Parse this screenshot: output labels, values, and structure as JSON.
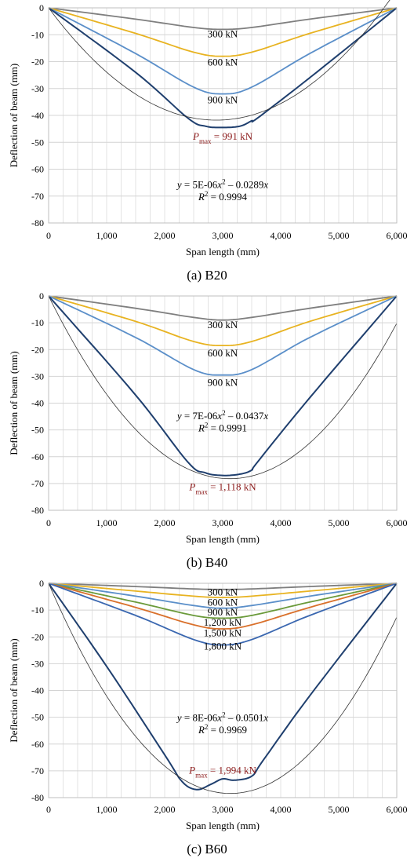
{
  "chart_data": [
    {
      "type": "line",
      "caption": "(a) B20",
      "xlabel": "Span length (mm)",
      "ylabel": "Deflection of beam (mm)",
      "xlim": [
        0,
        6000
      ],
      "ylim": [
        -80,
        0
      ],
      "xticks": [
        "0",
        "1,000",
        "2,000",
        "3,000",
        "4,000",
        "5,000",
        "6,000"
      ],
      "yticks": [
        "0",
        "-10",
        "-20",
        "-30",
        "-40",
        "-50",
        "-60",
        "-70",
        "-80"
      ],
      "grid": true,
      "series": [
        {
          "name": "300 kN",
          "color": "#7f7f7f",
          "x": [
            0,
            1500,
            2500,
            3000,
            3500,
            4500,
            6000
          ],
          "y": [
            0,
            -4.2,
            -7.3,
            -8,
            -7.3,
            -4.2,
            0
          ]
        },
        {
          "name": "600 kN",
          "color": "#e8b321",
          "x": [
            0,
            1500,
            2500,
            3000,
            3500,
            4500,
            6000
          ],
          "y": [
            0,
            -9.5,
            -16.5,
            -18,
            -16.5,
            -9.5,
            0
          ]
        },
        {
          "name": "900 kN",
          "color": "#5b8fc9",
          "x": [
            0,
            1500,
            2500,
            3000,
            3500,
            4500,
            6000
          ],
          "y": [
            0,
            -17,
            -29.5,
            -32,
            -29.5,
            -17,
            0
          ]
        },
        {
          "name": "",
          "color": "#1f3f6e",
          "x": [
            0,
            1500,
            2400,
            2700,
            3000,
            3300,
            3500,
            3600,
            4500,
            6000
          ],
          "y": [
            0,
            -24,
            -41,
            -44,
            -44.5,
            -44,
            -42,
            -41,
            -26,
            0
          ]
        },
        {
          "name": "",
          "color": "#333333",
          "thin": true,
          "fit": [
            5e-06,
            -0.0289
          ]
        }
      ],
      "labels": {
        "l300": "300 kN",
        "l600": "600 kN",
        "l900": "900 kN"
      },
      "pmax": {
        "symbol": "P",
        "sub": "max",
        "text": " = 991 kN"
      },
      "equation": {
        "a": "5E-06",
        "b": "0.0289"
      },
      "r2": {
        "label": "R",
        "value": " = 0.9994"
      }
    },
    {
      "type": "line",
      "caption": "(b) B40",
      "xlabel": "Span length (mm)",
      "ylabel": "Deflection of beam (mm)",
      "xlim": [
        0,
        6000
      ],
      "ylim": [
        -80,
        0
      ],
      "xticks": [
        "0",
        "1,000",
        "2,000",
        "3,000",
        "4,000",
        "5,000",
        "6,000"
      ],
      "yticks": [
        "0",
        "-10",
        "-20",
        "-30",
        "-40",
        "-50",
        "-60",
        "-70",
        "-80"
      ],
      "grid": true,
      "series": [
        {
          "name": "300 kN",
          "color": "#7f7f7f",
          "x": [
            0,
            1500,
            2500,
            3000,
            3500,
            4500,
            6000
          ],
          "y": [
            0,
            -4.6,
            -8,
            -9,
            -8,
            -4.6,
            0
          ]
        },
        {
          "name": "600 kN",
          "color": "#e8b321",
          "x": [
            0,
            1500,
            2500,
            3000,
            3500,
            4500,
            6000
          ],
          "y": [
            0,
            -9.5,
            -17,
            -18.5,
            -17,
            -9.5,
            0
          ]
        },
        {
          "name": "900 kN",
          "color": "#5b8fc9",
          "x": [
            0,
            1500,
            2500,
            3000,
            3500,
            4500,
            6000
          ],
          "y": [
            0,
            -15.5,
            -27.5,
            -29.5,
            -27.5,
            -15.5,
            0
          ]
        },
        {
          "name": "",
          "color": "#1f3f6e",
          "x": [
            0,
            1500,
            2400,
            2700,
            3000,
            3300,
            3500,
            3600,
            4500,
            6000
          ],
          "y": [
            0,
            -37,
            -62,
            -66,
            -67,
            -66.5,
            -65,
            -62,
            -38,
            0
          ]
        },
        {
          "name": "",
          "color": "#333333",
          "thin": true,
          "fit": [
            7e-06,
            -0.0437
          ]
        }
      ],
      "labels": {
        "l300": "300 kN",
        "l600": "600 kN",
        "l900": "900 kN"
      },
      "pmax": {
        "symbol": "P",
        "sub": "max",
        "text": " = 1,118 kN"
      },
      "equation": {
        "a": "7E-06",
        "b": "0.0437"
      },
      "r2": {
        "label": "R",
        "value": " = 0.9991"
      }
    },
    {
      "type": "line",
      "caption": "(c) B60",
      "xlabel": "Span length (mm)",
      "ylabel": "Deflection of beam (mm)",
      "xlim": [
        0,
        6000
      ],
      "ylim": [
        -80,
        0
      ],
      "xticks": [
        "0",
        "1,000",
        "2,000",
        "3,000",
        "4,000",
        "5,000",
        "6,000"
      ],
      "yticks": [
        "0",
        "-10",
        "-20",
        "-30",
        "-40",
        "-50",
        "-60",
        "-70",
        "-80"
      ],
      "grid": true,
      "series": [
        {
          "name": "300 kN",
          "color": "#7f7f7f",
          "x": [
            0,
            1500,
            2500,
            3000,
            3500,
            4500,
            6000
          ],
          "y": [
            0,
            -1.2,
            -2.1,
            -2.3,
            -2.1,
            -1.2,
            0
          ]
        },
        {
          "name": "600 kN",
          "color": "#e8b321",
          "x": [
            0,
            1500,
            2500,
            3000,
            3500,
            4500,
            6000
          ],
          "y": [
            0,
            -2.9,
            -4.8,
            -5.3,
            -4.8,
            -2.9,
            0
          ]
        },
        {
          "name": "900 kN",
          "color": "#5b8fc9",
          "x": [
            0,
            1500,
            2500,
            3000,
            3500,
            4500,
            6000
          ],
          "y": [
            0,
            -4.8,
            -8.3,
            -9.3,
            -8.3,
            -4.8,
            0
          ]
        },
        {
          "name": "1,200 kN",
          "color": "#6a9a3a",
          "x": [
            0,
            1500,
            2500,
            3000,
            3500,
            4500,
            6000
          ],
          "y": [
            0,
            -7,
            -12,
            -13,
            -12,
            -7,
            0
          ]
        },
        {
          "name": "1,500 kN",
          "color": "#d9702b",
          "x": [
            0,
            1500,
            2500,
            3000,
            3500,
            4500,
            6000
          ],
          "y": [
            0,
            -9,
            -15.5,
            -17,
            -15.5,
            -9,
            0
          ]
        },
        {
          "name": "1,800 kN",
          "color": "#3a67b0",
          "x": [
            0,
            1500,
            2500,
            3000,
            3500,
            4500,
            6000
          ],
          "y": [
            0,
            -12,
            -21,
            -23,
            -21,
            -12,
            0
          ]
        },
        {
          "name": "",
          "color": "#1f3f6e",
          "x": [
            0,
            1000,
            2000,
            2300,
            2550,
            2800,
            3000,
            3200,
            3500,
            3700,
            4500,
            6000
          ],
          "y": [
            0,
            -31,
            -64,
            -74,
            -77,
            -75,
            -73,
            -73.5,
            -72,
            -66,
            -42,
            0
          ]
        },
        {
          "name": "",
          "color": "#333333",
          "thin": true,
          "fit": [
            8e-06,
            -0.0501
          ]
        }
      ],
      "labels": {
        "l300": "300 kN",
        "l600": "600 kN",
        "l900": "900 kN",
        "l1200": "1,200 kN",
        "l1500": "1,500 kN",
        "l1800": "1,800 kN"
      },
      "pmax": {
        "symbol": "P",
        "sub": "max",
        "text": " = 1,994 kN"
      },
      "equation": {
        "a": "8E-06",
        "b": "0.0501"
      },
      "r2": {
        "label": "R",
        "value": " = 0.9969"
      }
    }
  ]
}
